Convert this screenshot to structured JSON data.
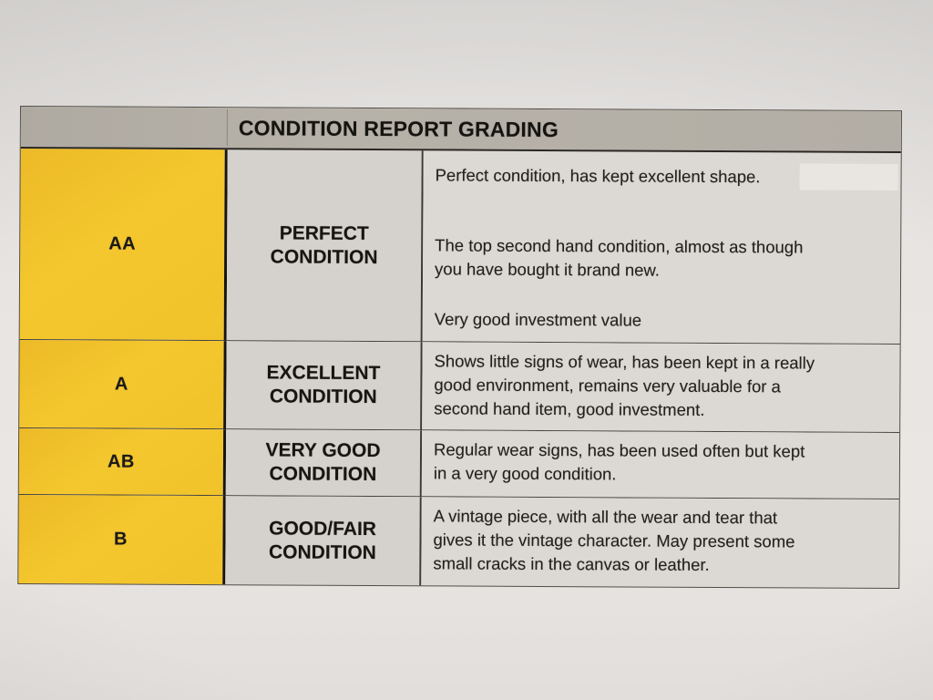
{
  "document": {
    "type_note": "photo of printed condition grading table"
  },
  "table": {
    "header_title": "CONDITION REPORT GRADING",
    "rows": [
      {
        "code": "AA",
        "label": "PERFECT\nCONDITION",
        "description_paragraphs": [
          "Perfect condition, has kept excellent shape.",
          "The top second hand condition, almost as though\nyou have bought it brand new.",
          "Very good investment value"
        ]
      },
      {
        "code": "A",
        "label": "EXCELLENT\nCONDITION",
        "description_paragraphs": [
          "Shows little signs of wear, has been kept in a really\ngood environment, remains very valuable for a\nsecond hand item, good investment."
        ]
      },
      {
        "code": "AB",
        "label": "VERY GOOD\nCONDITION",
        "description_paragraphs": [
          "Regular wear signs, has been used often but kept\nin a very good condition."
        ]
      },
      {
        "code": "B",
        "label": "GOOD/FAIR\nCONDITION",
        "description_paragraphs": [
          "A vintage piece, with all the wear and tear that\ngives it the vintage character. May present some\nsmall cracks in the canvas or leather."
        ]
      }
    ]
  },
  "colors": {
    "grade_cell_yellow": "#f2c42c",
    "header_bar_gray": "#b3aea5",
    "label_cell_gray": "#d5d2ce",
    "description_cell_gray": "#dcd9d5",
    "paper_background": "#e6e3e1",
    "text": "#1b1a18",
    "grid_line": "#46423c"
  }
}
